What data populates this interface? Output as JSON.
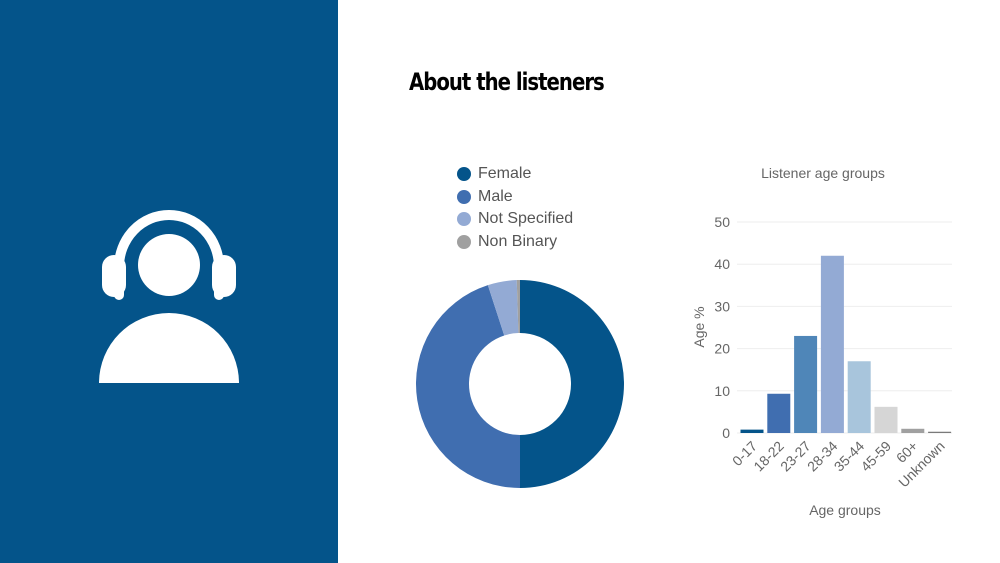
{
  "header": {
    "title": "About the listeners"
  },
  "icons": {
    "listener": "headphones-user-icon"
  },
  "colors": {
    "panel": "#04548a",
    "female": "#04548a",
    "male": "#406eb0",
    "not_specified": "#93aad4",
    "non_binary": "#a0a0a0"
  },
  "chart_data": [
    {
      "type": "pie",
      "subtype": "donut",
      "legend_position": "top",
      "labels": [
        "Female",
        "Male",
        "Not Specified",
        "Non Binary"
      ],
      "values": [
        50.0,
        45.0,
        4.5,
        0.5
      ],
      "colors": [
        "#04548a",
        "#406eb0",
        "#93aad4",
        "#a0a0a0"
      ]
    },
    {
      "type": "bar",
      "title": "Listener age groups",
      "xlabel": "Age groups",
      "ylabel": "Age %",
      "categories": [
        "0-17",
        "18-22",
        "23-27",
        "28-34",
        "35-44",
        "45-59",
        "60+",
        "Unknown"
      ],
      "values": [
        0.8,
        9.3,
        23,
        42,
        17,
        6.2,
        1,
        0.3
      ],
      "colors": [
        "#04548a",
        "#406eb0",
        "#4f86b8",
        "#93aad4",
        "#a8c5dc",
        "#d6d6d6",
        "#a0a0a0",
        "#7a7a7a"
      ],
      "ylim": [
        0,
        50
      ],
      "yticks": [
        0,
        10,
        20,
        30,
        40,
        50
      ],
      "grid": true
    }
  ]
}
